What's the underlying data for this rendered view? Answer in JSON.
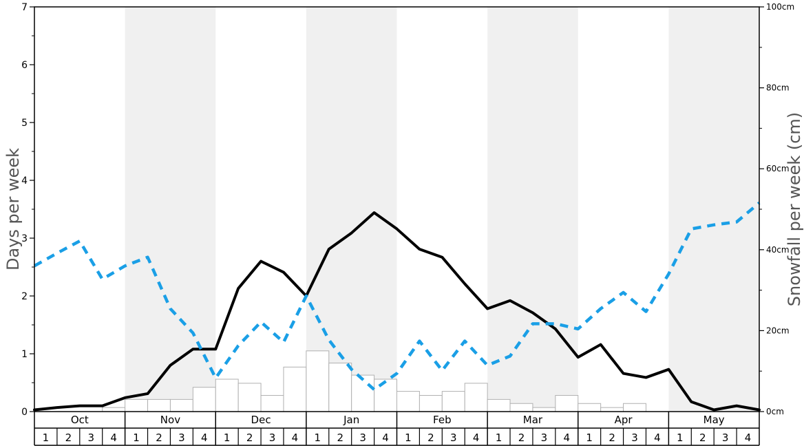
{
  "chart_data": {
    "type": "bar",
    "title": "",
    "ylabel_left": "Days per week",
    "ylabel_right": "Snowfall per week (cm)",
    "ylim_left": [
      0,
      7
    ],
    "ylim_right": [
      0,
      100
    ],
    "left_ticks": [
      "0",
      "1",
      "2",
      "3",
      "4",
      "5",
      "6",
      "7"
    ],
    "right_ticks": [
      "0cm",
      "20cm",
      "40cm",
      "60cm",
      "80cm",
      "100cm"
    ],
    "months": [
      "Oct",
      "Nov",
      "Dec",
      "Jan",
      "Feb",
      "Mar",
      "Apr",
      "May"
    ],
    "week_labels": [
      "1",
      "2",
      "3",
      "4"
    ],
    "snowfall_bars": [
      0,
      0,
      0,
      1,
      3,
      3,
      3,
      6,
      8,
      7,
      4,
      11,
      15,
      12,
      9,
      8,
      5,
      4,
      5,
      7,
      3,
      2,
      1,
      4,
      2,
      1,
      2,
      0,
      0,
      0,
      0,
      0
    ],
    "series": [
      {
        "key": "snow_days",
        "style": "solid-black",
        "values": [
          0.03,
          0.07,
          0.1,
          0.1,
          0.24,
          0.31,
          0.8,
          1.08,
          1.08,
          2.13,
          2.6,
          2.41,
          2.0,
          2.81,
          3.09,
          3.44,
          3.16,
          2.81,
          2.67,
          2.21,
          1.78,
          1.92,
          1.71,
          1.43,
          0.94,
          1.16,
          0.66,
          0.59,
          0.73,
          0.17,
          0.03,
          0.1,
          0.03
        ]
      },
      {
        "key": "snowfall_line",
        "style": "dashed-blue",
        "values": [
          2.52,
          2.74,
          2.95,
          2.29,
          2.52,
          2.67,
          1.78,
          1.36,
          0.58,
          1.14,
          1.55,
          1.2,
          2.0,
          1.24,
          0.73,
          0.38,
          0.66,
          1.22,
          0.71,
          1.22,
          0.8,
          0.96,
          1.52,
          1.52,
          1.43,
          1.78,
          2.06,
          1.73,
          2.38,
          3.16,
          3.23,
          3.28,
          3.61
        ]
      }
    ],
    "colors": {
      "band": "#f0f0f0",
      "solid_line": "#000000",
      "dashed_line": "#1a9fe6",
      "bar_fill": "#ffffff",
      "bar_stroke": "#b0b0b0"
    }
  }
}
